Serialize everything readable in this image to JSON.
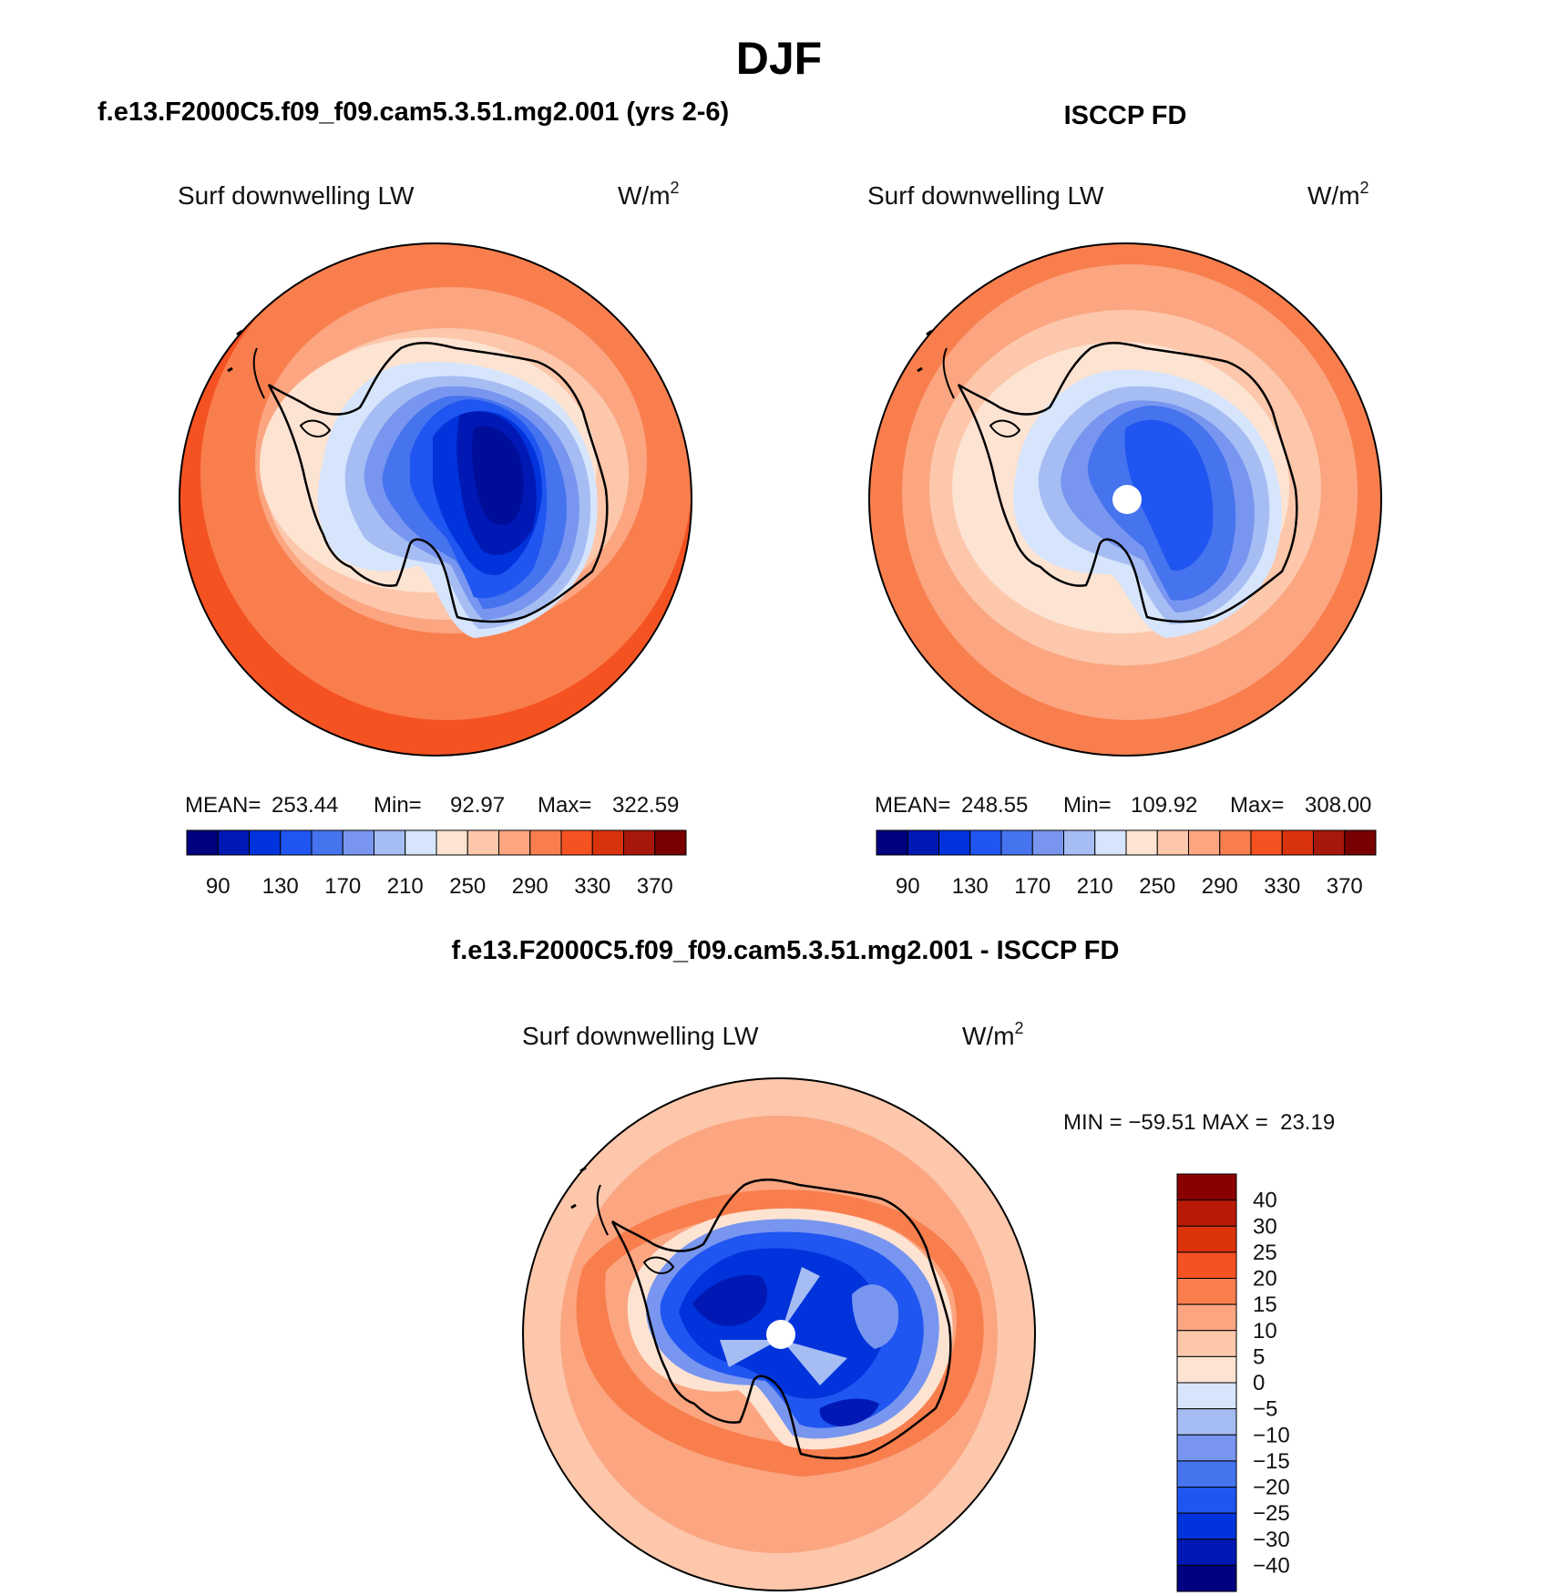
{
  "chart_data": [
    {
      "type": "heatmap",
      "projection": "south-polar-stereographic",
      "season": "DJF",
      "panel_title": "f.e13.F2000C5.f09_f09.cam5.3.51.mg2.001 (yrs 2-6)",
      "variable": "Surf downwelling LW",
      "units": "W/m",
      "units_exponent": "2",
      "stats": {
        "mean_label": "MEAN=",
        "mean": "253.44",
        "min_label": "Min=",
        "min": "92.97",
        "max_label": "Max=",
        "max": "322.59"
      },
      "colorbar": {
        "orientation": "horizontal",
        "levels": [
          90,
          110,
          130,
          150,
          170,
          190,
          210,
          230,
          250,
          270,
          290,
          310,
          330,
          350,
          370
        ],
        "tick_labels": [
          "90",
          "130",
          "170",
          "210",
          "250",
          "290",
          "330",
          "370"
        ],
        "colors": [
          "#000080",
          "#0019b4",
          "#0033dc",
          "#1f55f0",
          "#4673ee",
          "#7896f0",
          "#a6bdf4",
          "#d6e5fb",
          "#fde3d2",
          "#fcc7ab",
          "#fba681",
          "#f97e4e",
          "#f55222",
          "#d8330d",
          "#a8170b",
          "#780000"
        ]
      },
      "description": "Continent interior 90-170, coastal ring 210-290, open ocean 290-330"
    },
    {
      "type": "heatmap",
      "projection": "south-polar-stereographic",
      "panel_title": "ISCCP FD",
      "variable": "Surf downwelling LW",
      "units": "W/m",
      "units_exponent": "2",
      "stats": {
        "mean_label": "MEAN=",
        "mean": "248.55",
        "min_label": "Min=",
        "min": "109.92",
        "max_label": "Max=",
        "max": "308.00"
      },
      "colorbar": {
        "orientation": "horizontal",
        "levels": [
          90,
          110,
          130,
          150,
          170,
          190,
          210,
          230,
          250,
          270,
          290,
          310,
          330,
          350,
          370
        ],
        "tick_labels": [
          "90",
          "130",
          "170",
          "210",
          "250",
          "290",
          "330",
          "370"
        ],
        "colors": [
          "#000080",
          "#0019b4",
          "#0033dc",
          "#1f55f0",
          "#4673ee",
          "#7896f0",
          "#a6bdf4",
          "#d6e5fb",
          "#fde3d2",
          "#fcc7ab",
          "#fba681",
          "#f97e4e",
          "#f55222",
          "#d8330d",
          "#a8170b",
          "#780000"
        ]
      },
      "description": "Continent interior 130-190 with missing pole, ocean 250-310"
    },
    {
      "type": "heatmap",
      "projection": "south-polar-stereographic",
      "panel_title": "f.e13.F2000C5.f09_f09.cam5.3.51.mg2.001 - ISCCP FD",
      "variable": "Surf downwelling LW",
      "units": "W/m",
      "units_exponent": "2",
      "stats": {
        "text": "MIN = −59.51 MAX =  23.19",
        "min": -59.51,
        "max": 23.19
      },
      "colorbar": {
        "orientation": "vertical",
        "levels": [
          40,
          30,
          25,
          20,
          15,
          10,
          5,
          0,
          -5,
          -10,
          -15,
          -20,
          -25,
          -30,
          -40
        ],
        "tick_labels": [
          "40",
          "30",
          "25",
          "20",
          "15",
          "10",
          "5",
          "0",
          "−5",
          "−10",
          "−15",
          "−20",
          "−25",
          "−30",
          "−40"
        ],
        "colors": [
          "#8a0000",
          "#b81a05",
          "#dd330d",
          "#f55222",
          "#f97e4e",
          "#fba681",
          "#fcc7ab",
          "#fde3d2",
          "#d6e5fb",
          "#a6bdf4",
          "#7896f0",
          "#4673ee",
          "#1f55f0",
          "#0033dc",
          "#0019b4",
          "#000080"
        ]
      },
      "description": "Continent -20 to -40 (model drier/colder), ocean +5 to +20"
    }
  ],
  "figure": {
    "title": "DJF"
  }
}
